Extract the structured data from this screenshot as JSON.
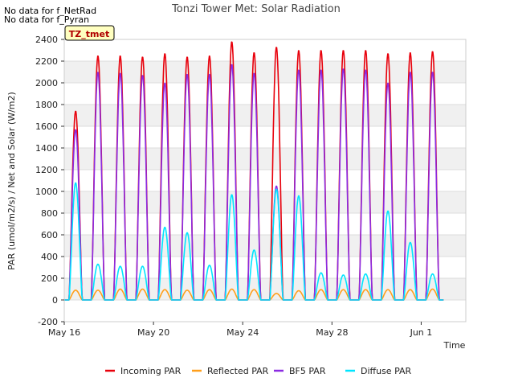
{
  "notes": [
    "No data for f_NetRad",
    "No data for f_Pyran"
  ],
  "site_tag": "TZ_tmet",
  "chart_data": {
    "type": "line",
    "title": "Tonzi Tower Met: Solar Radiation",
    "xlabel": "Time",
    "ylabel": "PAR (umol/m2/s) / Net and Solar (W/m2)",
    "xlim": [
      0,
      18
    ],
    "ylim": [
      -200,
      2400
    ],
    "grid": true,
    "legend_position": "bottom",
    "x_unit": "days since May 16",
    "xticks": [
      {
        "x": 0,
        "label": "May 16"
      },
      {
        "x": 4,
        "label": "May 20"
      },
      {
        "x": 8,
        "label": "May 24"
      },
      {
        "x": 12,
        "label": "May 28"
      },
      {
        "x": 16,
        "label": "Jun 1"
      }
    ],
    "yticks": [
      -200,
      0,
      200,
      400,
      600,
      800,
      1000,
      1200,
      1400,
      1600,
      1800,
      2000,
      2200,
      2400
    ],
    "daylight": {
      "sunrise_frac": 0.21,
      "sunset_frac": 0.81
    },
    "series": [
      {
        "name": "Incoming PAR",
        "color": "#e8000b",
        "daily_peak": [
          1740,
          2250,
          2250,
          2240,
          2270,
          2240,
          2250,
          2380,
          2280,
          2330,
          2300,
          2300,
          2300,
          2300,
          2270,
          2280,
          2290
        ]
      },
      {
        "name": "Reflected PAR",
        "color": "#ff9f1c",
        "daily_peak": [
          90,
          90,
          100,
          100,
          95,
          90,
          95,
          100,
          95,
          60,
          85,
          95,
          95,
          95,
          95,
          95,
          100
        ]
      },
      {
        "name": "BF5 PAR",
        "color": "#8b2be2",
        "daily_peak": [
          1570,
          2100,
          2090,
          2070,
          2000,
          2080,
          2080,
          2170,
          2090,
          1050,
          2120,
          2120,
          2130,
          2120,
          2000,
          2100,
          2100
        ]
      },
      {
        "name": "Diffuse PAR",
        "color": "#00e5ff",
        "daily_peak": [
          1080,
          330,
          310,
          310,
          670,
          620,
          320,
          970,
          460,
          1020,
          960,
          250,
          230,
          240,
          820,
          530,
          240
        ]
      }
    ]
  }
}
